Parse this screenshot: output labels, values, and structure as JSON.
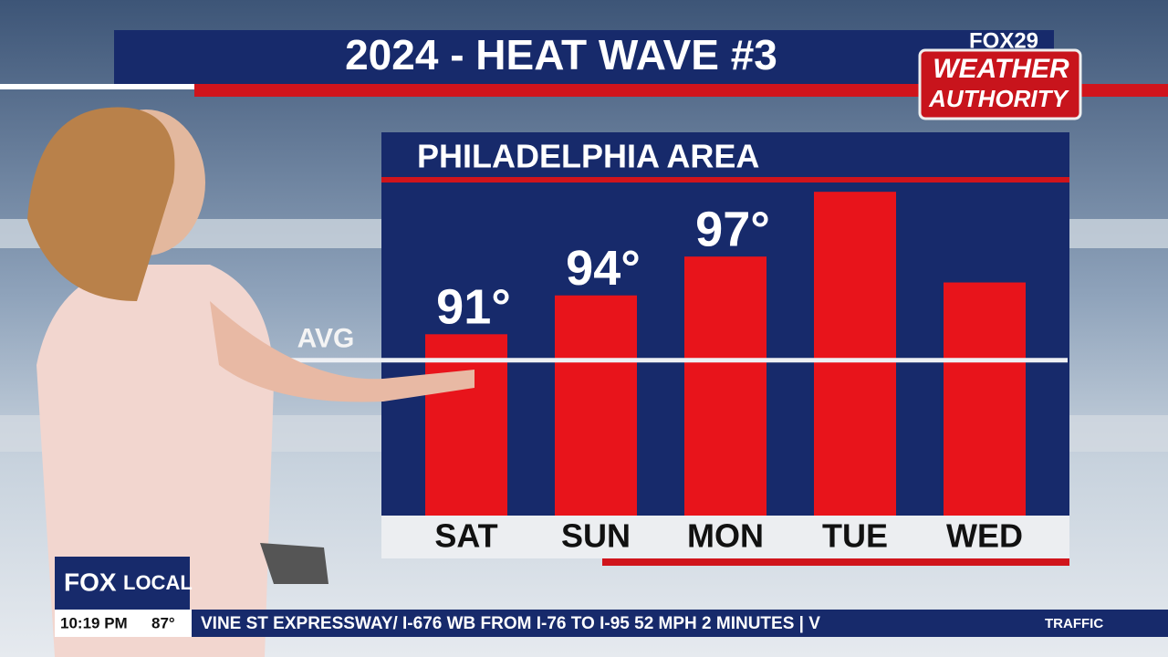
{
  "chart_data": {
    "type": "bar",
    "title": "2024 - HEAT WAVE #3",
    "subtitle": "PHILADELPHIA AREA",
    "categories": [
      "SAT",
      "SUN",
      "MON",
      "TUE",
      "WED"
    ],
    "values": [
      91,
      94,
      97,
      102,
      95
    ],
    "value_labels": [
      "91°",
      "94°",
      "97°",
      null,
      null
    ],
    "color": "#e8141b",
    "ylim": [
      77,
      103
    ],
    "reference_line": {
      "label": "AVG",
      "value": 89
    }
  },
  "screen": {
    "logo_top": "FOX29",
    "logo_mid": "WEATHER",
    "logo_bottom": "AUTHORITY",
    "station_a": "FOX",
    "station_b": "LOCAL",
    "time": "10:19 PM",
    "temperature": "87°",
    "ticker": "VINE ST EXPRESSWAY/ I-676 WB FROM I-76 TO I-95 52 MPH 2 MINUTES | V",
    "ticker_tag": "TRAFFIC"
  }
}
